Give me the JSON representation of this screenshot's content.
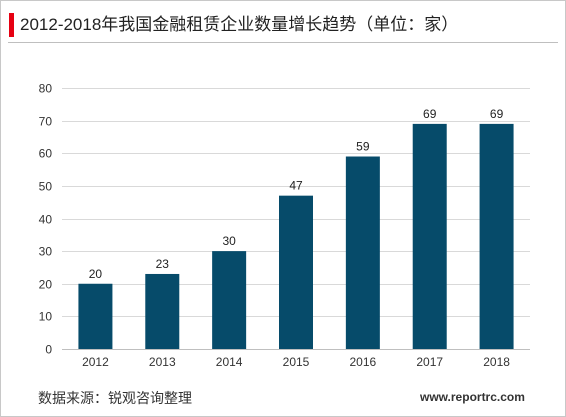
{
  "header": {
    "title": "2012-2018年我国金融租赁企业数量增长趋势（单位：家）"
  },
  "footer": {
    "source": "数据来源：锐观咨询整理",
    "website": "www.reportrc.com"
  },
  "colors": {
    "bar": "#064b6a",
    "title_accent": "#e60012",
    "grid": "#d9d9d9"
  },
  "chart_data": {
    "type": "bar",
    "title": "2012-2018年我国金融租赁企业数量增长趋势（单位：家）",
    "categories": [
      "2012",
      "2013",
      "2014",
      "2015",
      "2016",
      "2017",
      "2018"
    ],
    "values": [
      20,
      23,
      30,
      47,
      59,
      69,
      69
    ],
    "yticks": [
      0,
      10,
      20,
      30,
      40,
      50,
      60,
      70,
      80
    ],
    "ylim": [
      0,
      80
    ],
    "xlabel": "",
    "ylabel": "",
    "grid": true,
    "legend": "none",
    "data_labels": true
  }
}
